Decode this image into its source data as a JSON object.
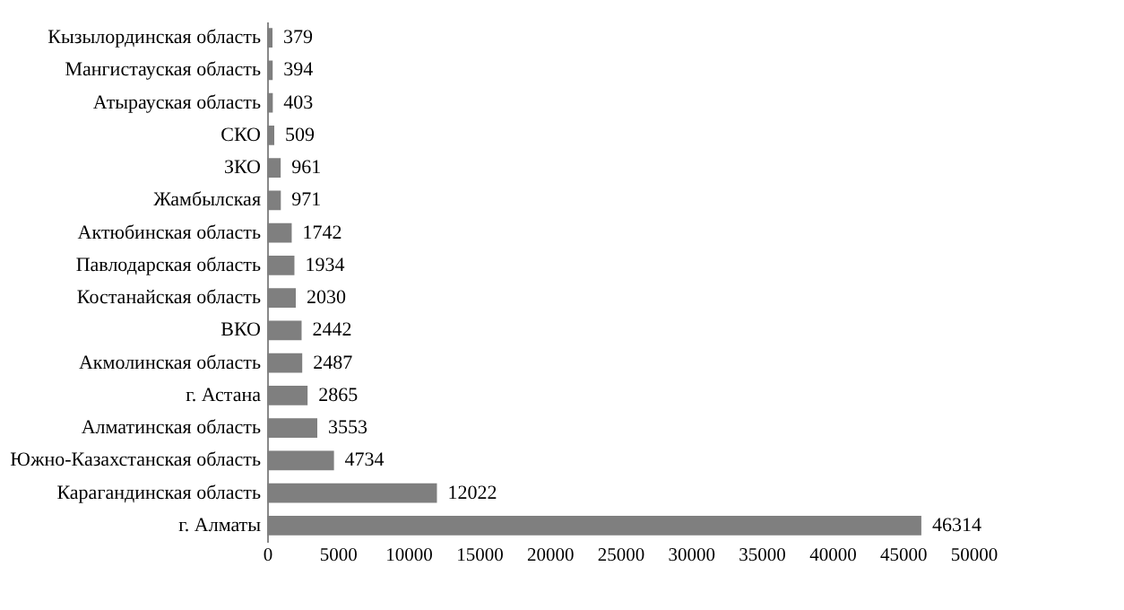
{
  "chart_data": {
    "type": "bar",
    "orientation": "horizontal",
    "categories": [
      "Кызылординская область",
      "Мангистауская область",
      "Атырауская область",
      "СКО",
      "ЗКО",
      "Жамбылская",
      "Актюбинская область",
      "Павлодарская область",
      "Костанайская область",
      "ВКО",
      "Акмолинская область",
      "г. Астана",
      "Алматинская область",
      "Южно-Казахстанская область",
      "Карагандинская область",
      "г. Алматы"
    ],
    "values": [
      379,
      394,
      403,
      509,
      961,
      971,
      1742,
      1934,
      2030,
      2442,
      2487,
      2865,
      3553,
      4734,
      12022,
      46314
    ],
    "color": "#7f7f7f",
    "data_labels": true,
    "xlim": [
      0,
      50000
    ],
    "xticks": [
      0,
      5000,
      10000,
      15000,
      20000,
      25000,
      30000,
      35000,
      40000,
      45000,
      50000
    ],
    "grid": false
  }
}
